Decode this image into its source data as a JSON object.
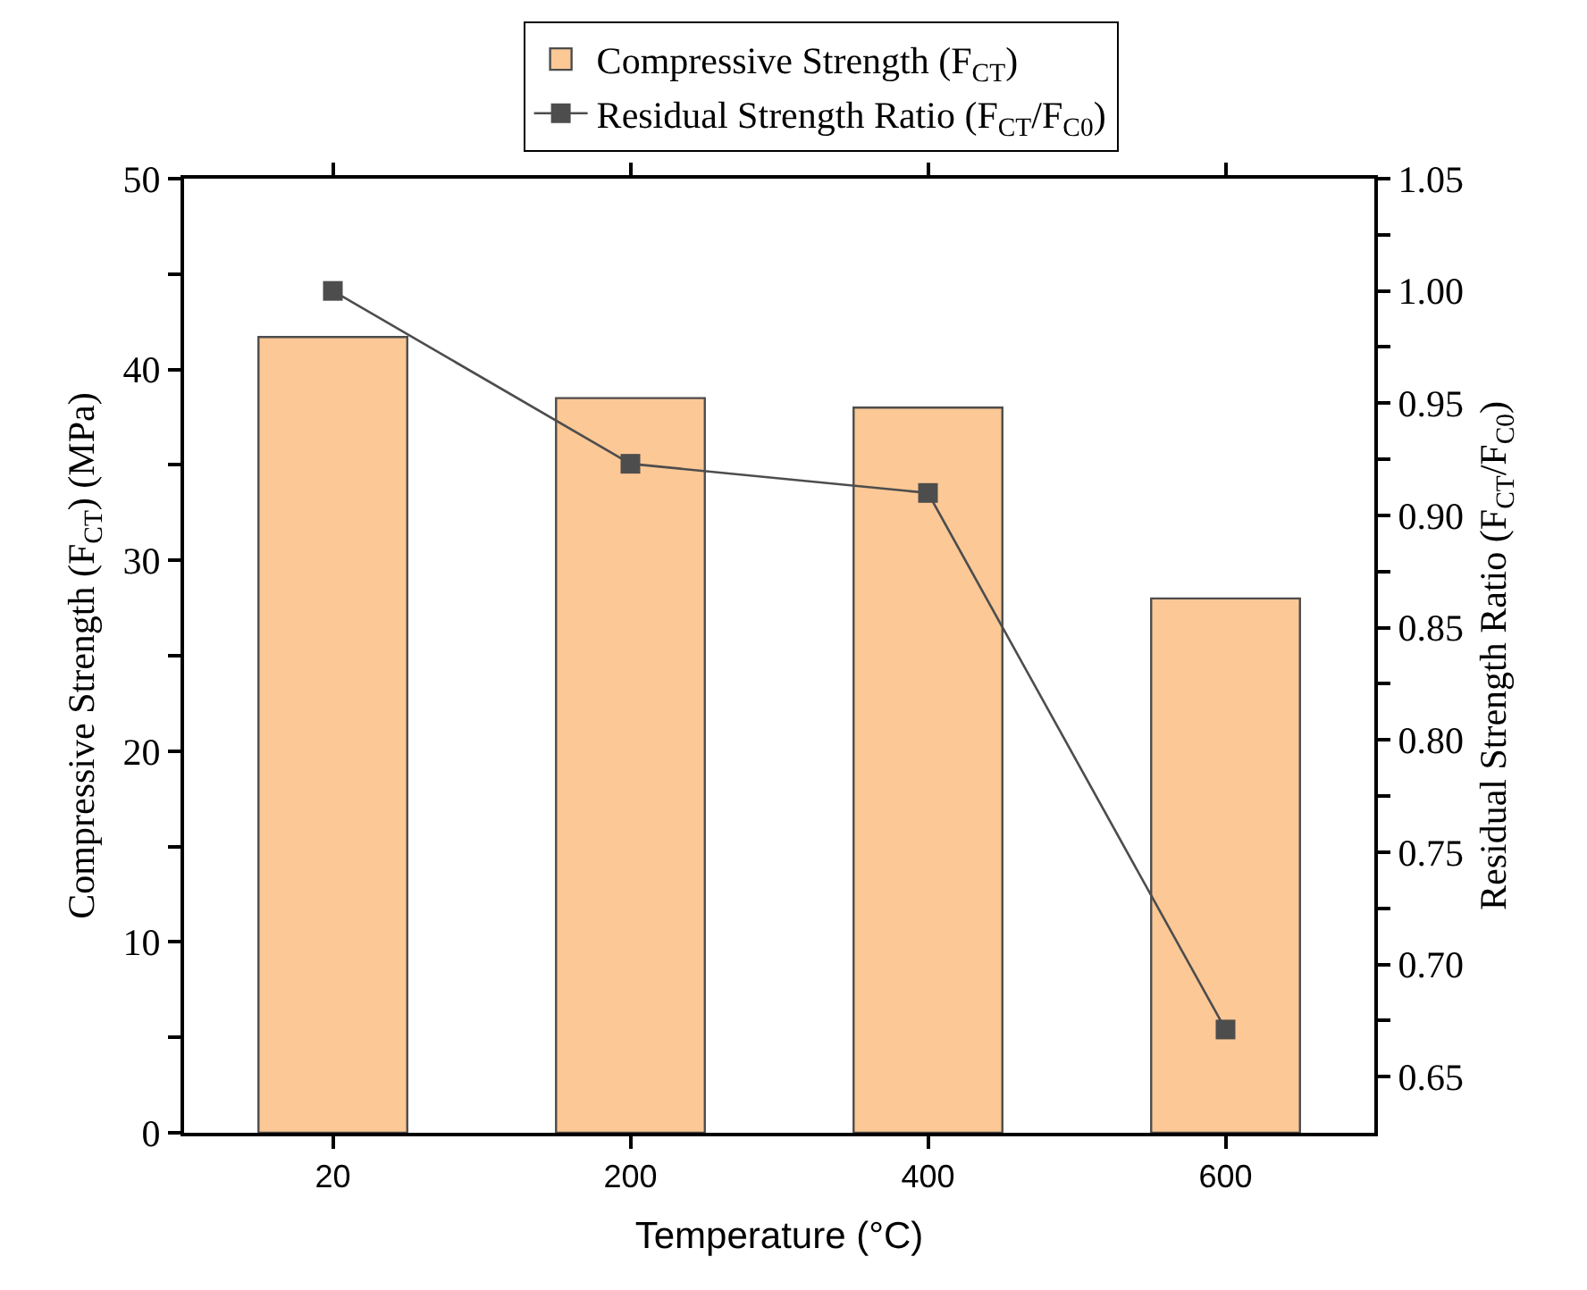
{
  "chart_data": {
    "type": "bar",
    "xlabel": "Temperature (°C)",
    "ylabel": "Compressive Strength (F$_{CT}$) (MPa)",
    "y2label": "Residual Strength Ratio (F$_{CT}$/F$_{C0}$)",
    "categories": [
      "20",
      "200",
      "400",
      "600"
    ],
    "series": [
      {
        "name": "Compressive Strength (F$_{CT}$)",
        "color": "#fcc896",
        "values": [
          41.7,
          38.5,
          38.0,
          28.0
        ]
      },
      {
        "name": "Residual Strength Ratio (F$_{CT}$/F$_{C0}$)",
        "type": "line",
        "axis": "y2",
        "color": "#4d4d4d",
        "marker": "square",
        "values": [
          1.0,
          0.923,
          0.91,
          0.671
        ]
      }
    ],
    "ylim": [
      0,
      50
    ],
    "yticks": [
      0,
      {
        "value": 5,
        "label": null
      },
      10,
      {
        "value": 15,
        "label": null
      },
      20,
      {
        "value": 25,
        "label": null
      },
      30,
      {
        "value": 35,
        "label": null
      },
      40,
      {
        "value": 45,
        "label": null
      },
      50
    ],
    "y2lim": [
      0.625,
      1.05
    ],
    "y2ticks": [
      {
        "value": 0.65,
        "label": "0.65"
      },
      {
        "value": 0.675,
        "label": null
      },
      {
        "value": 0.7,
        "label": "0.70"
      },
      {
        "value": 0.725,
        "label": null
      },
      {
        "value": 0.75,
        "label": "0.75"
      },
      {
        "value": 0.775,
        "label": null
      },
      {
        "value": 0.8,
        "label": "0.80"
      },
      {
        "value": 0.825,
        "label": null
      },
      {
        "value": 0.85,
        "label": "0.85"
      },
      {
        "value": 0.875,
        "label": null
      },
      {
        "value": 0.9,
        "label": "0.90"
      },
      {
        "value": 0.925,
        "label": null
      },
      {
        "value": 0.95,
        "label": "0.95"
      },
      {
        "value": 0.975,
        "label": null
      },
      {
        "value": 1.0,
        "label": "1.00"
      },
      {
        "value": 1.025,
        "label": null
      },
      {
        "value": 1.05,
        "label": "1.05"
      }
    ],
    "grid": false,
    "legend": "top"
  }
}
